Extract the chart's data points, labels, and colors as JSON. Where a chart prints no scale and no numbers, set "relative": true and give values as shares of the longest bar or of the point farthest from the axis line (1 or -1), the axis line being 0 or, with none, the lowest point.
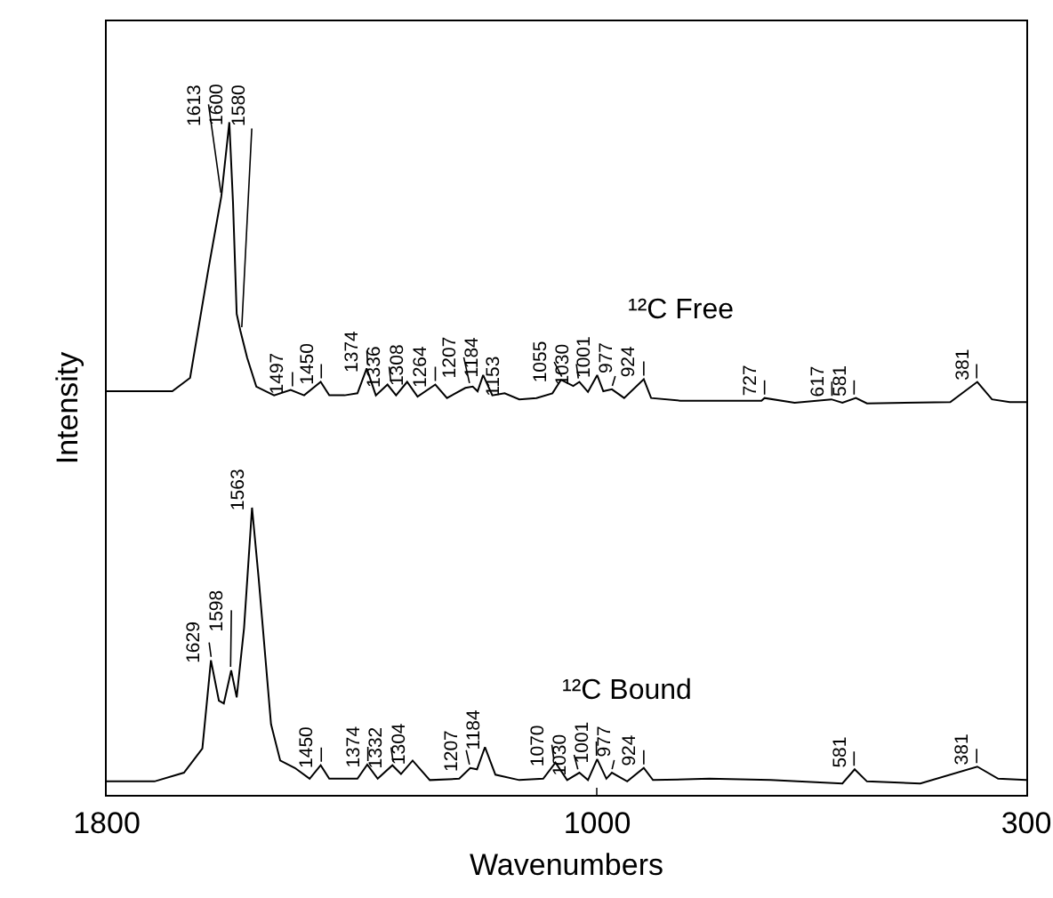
{
  "chart_data": {
    "type": "line",
    "relative": true,
    "xlabel": "Wavenumbers",
    "ylabel": "Intensity",
    "xlim": [
      1800,
      300
    ],
    "xticks": [
      1800,
      1000,
      300
    ],
    "series": [
      {
        "name": "¹²C Free",
        "color": "#000000",
        "x": [
          1800,
          1693,
          1664,
          1635,
          1613,
          1600,
          1594,
          1588,
          1582,
          1571,
          1556,
          1527,
          1500,
          1478,
          1451,
          1437,
          1412,
          1391,
          1376,
          1361,
          1342,
          1328,
          1310,
          1293,
          1264,
          1245,
          1215,
          1203,
          1195,
          1186,
          1171,
          1151,
          1127,
          1099,
          1073,
          1059,
          1039,
          1029,
          1015,
          1000,
          990,
          976,
          956,
          924,
          912,
          864,
          732,
          727,
          678,
          618,
          600,
          578,
          560,
          424,
          380,
          356,
          327,
          300
        ],
        "values": [
          0.6,
          0.6,
          0.62,
          0.777,
          0.89,
          1.0,
          0.88,
          0.715,
          0.69,
          0.65,
          0.607,
          0.594,
          0.602,
          0.594,
          0.614,
          0.594,
          0.594,
          0.597,
          0.634,
          0.594,
          0.61,
          0.594,
          0.614,
          0.592,
          0.61,
          0.59,
          0.605,
          0.607,
          0.6,
          0.624,
          0.594,
          0.597,
          0.588,
          0.59,
          0.597,
          0.617,
          0.608,
          0.614,
          0.599,
          0.624,
          0.6,
          0.603,
          0.59,
          0.618,
          0.59,
          0.586,
          0.586,
          0.59,
          0.583,
          0.588,
          0.583,
          0.59,
          0.582,
          0.584,
          0.614,
          0.588,
          0.584,
          0.584
        ]
      },
      {
        "name": "¹²C Bound",
        "color": "#000000",
        "x": [
          1800,
          1722,
          1674,
          1644,
          1630,
          1617,
          1609,
          1597,
          1588,
          1576,
          1563,
          1552,
          1532,
          1517,
          1493,
          1469,
          1451,
          1437,
          1391,
          1375,
          1358,
          1334,
          1320,
          1301,
          1273,
          1225,
          1207,
          1196,
          1183,
          1166,
          1127,
          1088,
          1068,
          1049,
          1029,
          1015,
          1000,
          985,
          976,
          951,
          924,
          909,
          817,
          717,
          600,
          580,
          560,
          473,
          380,
          346,
          300
        ],
        "values": [
          0.02,
          0.02,
          0.033,
          0.069,
          0.2,
          0.14,
          0.136,
          0.185,
          0.145,
          0.248,
          0.427,
          0.32,
          0.105,
          0.051,
          0.04,
          0.024,
          0.044,
          0.024,
          0.024,
          0.045,
          0.024,
          0.044,
          0.031,
          0.051,
          0.022,
          0.024,
          0.04,
          0.038,
          0.071,
          0.03,
          0.022,
          0.024,
          0.048,
          0.022,
          0.033,
          0.022,
          0.053,
          0.024,
          0.033,
          0.02,
          0.04,
          0.022,
          0.024,
          0.022,
          0.017,
          0.038,
          0.02,
          0.017,
          0.042,
          0.024,
          0.022
        ]
      }
    ],
    "annotations": [
      {
        "text": "1613",
        "x": 1613,
        "y": 0.89
      },
      {
        "text": "1600",
        "x": 1600,
        "y": 1.0
      },
      {
        "text": "1580",
        "x": 1580,
        "y": 0.69
      },
      {
        "text": "1497",
        "x": 1497,
        "y": 0.602
      },
      {
        "text": "1450",
        "x": 1450,
        "y": 0.614
      },
      {
        "text": "1374",
        "x": 1374,
        "y": 0.634
      },
      {
        "text": "1336",
        "x": 1336,
        "y": 0.61
      },
      {
        "text": "1308",
        "x": 1308,
        "y": 0.614
      },
      {
        "text": "1264",
        "x": 1264,
        "y": 0.61
      },
      {
        "text": "1207",
        "x": 1207,
        "y": 0.607
      },
      {
        "text": "1184",
        "x": 1184,
        "y": 0.624
      },
      {
        "text": "1153",
        "x": 1153,
        "y": 0.597
      },
      {
        "text": "1055",
        "x": 1055,
        "y": 0.617
      },
      {
        "text": "1030",
        "x": 1030,
        "y": 0.614
      },
      {
        "text": "1001",
        "x": 1001,
        "y": 0.624
      },
      {
        "text": "977",
        "x": 977,
        "y": 0.603
      },
      {
        "text": "924",
        "x": 924,
        "y": 0.618
      },
      {
        "text": "727",
        "x": 727,
        "y": 0.59
      },
      {
        "text": "617",
        "x": 617,
        "y": 0.588
      },
      {
        "text": "581",
        "x": 581,
        "y": 0.59
      },
      {
        "text": "381",
        "x": 381,
        "y": 0.614
      },
      {
        "text": "1629",
        "x": 1629,
        "y": 0.2
      },
      {
        "text": "1598",
        "x": 1598,
        "y": 0.185
      },
      {
        "text": "1563",
        "x": 1563,
        "y": 0.427
      },
      {
        "text": "1450",
        "x": 1450,
        "y": 0.044
      },
      {
        "text": "1374",
        "x": 1374,
        "y": 0.045
      },
      {
        "text": "1332",
        "x": 1332,
        "y": 0.044
      },
      {
        "text": "1304",
        "x": 1304,
        "y": 0.051
      },
      {
        "text": "1207",
        "x": 1207,
        "y": 0.04
      },
      {
        "text": "1184",
        "x": 1184,
        "y": 0.071
      },
      {
        "text": "1070",
        "x": 1070,
        "y": 0.048
      },
      {
        "text": "1030",
        "x": 1030,
        "y": 0.033
      },
      {
        "text": "1001",
        "x": 1001,
        "y": 0.053
      },
      {
        "text": "977",
        "x": 977,
        "y": 0.033
      },
      {
        "text": "924",
        "x": 924,
        "y": 0.04
      },
      {
        "text": "581",
        "x": 581,
        "y": 0.038
      },
      {
        "text": "381",
        "x": 381,
        "y": 0.042
      }
    ]
  }
}
